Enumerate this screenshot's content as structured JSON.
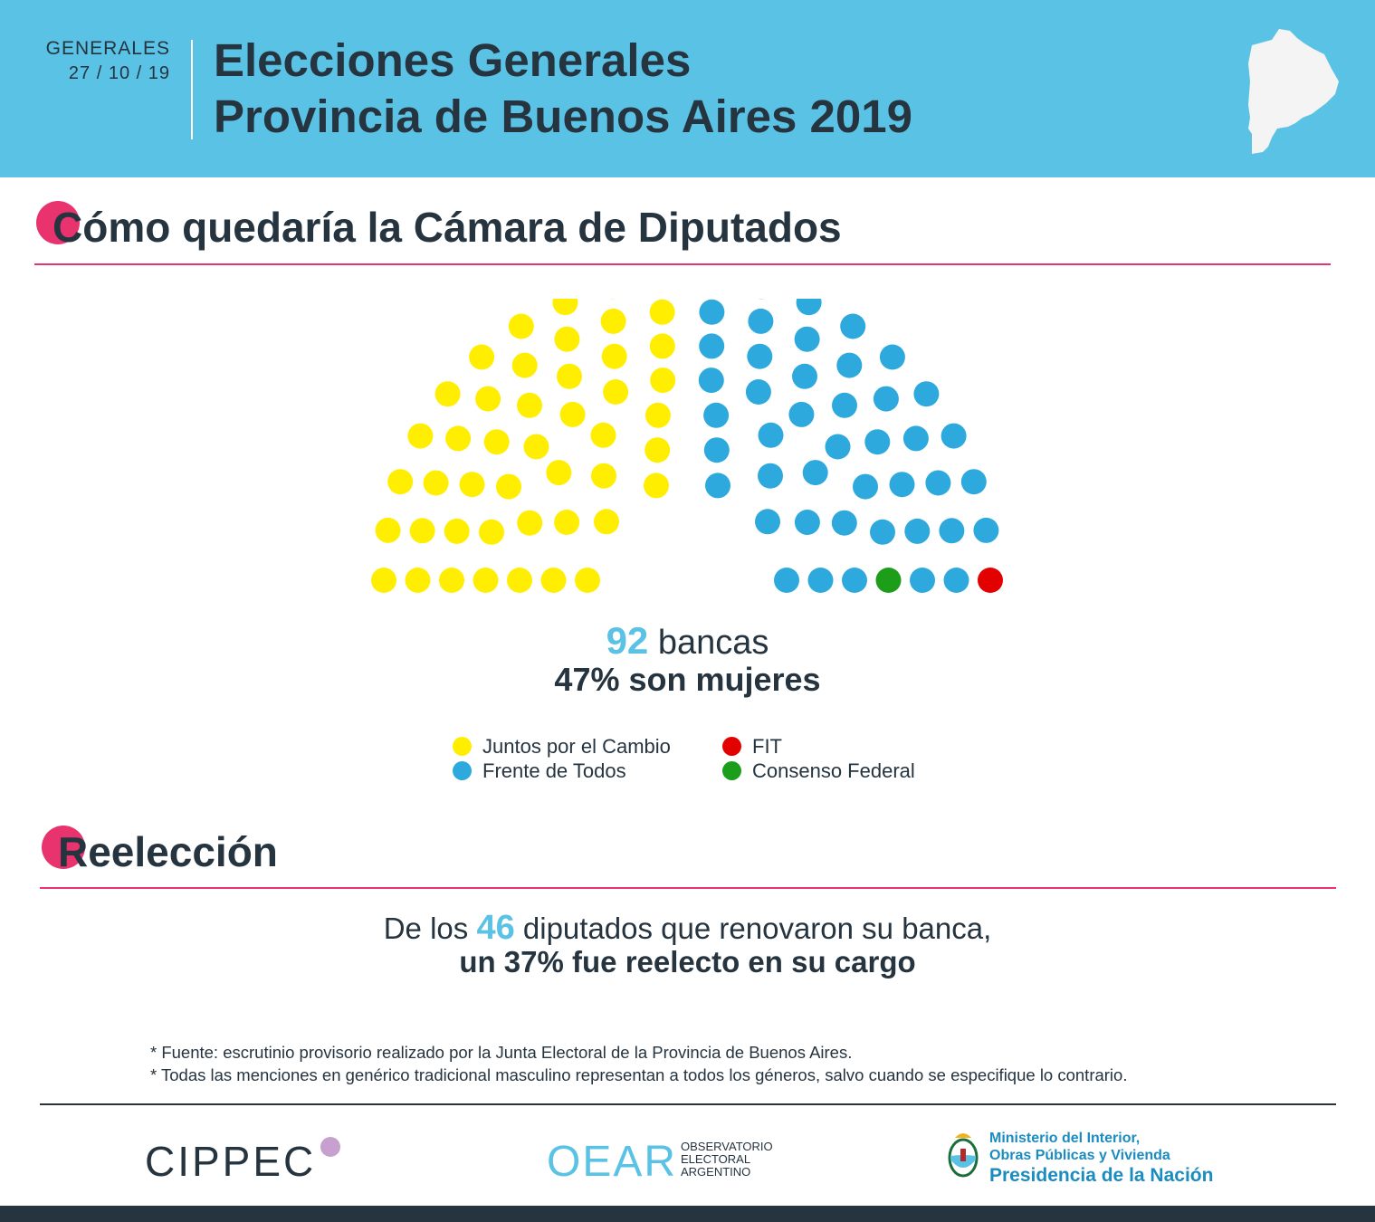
{
  "header": {
    "date_label": "GENERALES",
    "date_value": "27 / 10 / 19",
    "title_line1": "Elecciones Generales",
    "title_line2": "Provincia de Buenos Aires 2019"
  },
  "section1": {
    "title": "Cómo quedaría la Cámara de Diputados"
  },
  "section2": {
    "title": "Reelección"
  },
  "chart_data": {
    "type": "parliament",
    "title": "",
    "total_seats": 92,
    "series": [
      {
        "name": "Juntos por el Cambio",
        "values": [
          46
        ],
        "color": "#ffee00"
      },
      {
        "name": "Frente de Todos",
        "values": [
          44
        ],
        "color": "#2ea9dd"
      },
      {
        "name": "FIT",
        "values": [
          1
        ],
        "color": "#e20000"
      },
      {
        "name": "Consenso Federal",
        "values": [
          1
        ],
        "color": "#1c9e1a"
      }
    ],
    "legend": [
      "Juntos por el Cambio",
      "Frente de Todos",
      "FIT",
      "Consenso Federal"
    ],
    "legend_position": "bottom"
  },
  "summary": {
    "seats_number": "92",
    "seats_word": "bancas",
    "women_text": "47% son mujeres"
  },
  "reelection": {
    "pre": "De los",
    "number": "46",
    "post": "diputados que renovaron su banca,",
    "line2": "un 37% fue reelecto en su cargo"
  },
  "footnotes": [
    "* Fuente: escrutinio provisorio realizado por la Junta Electoral de la Provincia de Buenos Aires.",
    "* Todas las menciones en genérico tradicional masculino representan a todos los géneros, salvo cuando se especifique lo contrario."
  ],
  "footer": {
    "cippec": "CIPPEC",
    "oear": "OEAR",
    "oear_line1": "OBSERVATORIO",
    "oear_line2": "ELECTORAL",
    "oear_line3": "ARGENTINO",
    "mi_line1": "Ministerio del Interior,",
    "mi_line2": "Obras Públicas y Vivienda",
    "mi_line3": "Presidencia de la Nación"
  },
  "colors": {
    "header_bg": "#5ac2e4",
    "accent_pink": "#e8336f",
    "text_dark": "#263440",
    "highlight_blue": "#5ac2e4"
  }
}
